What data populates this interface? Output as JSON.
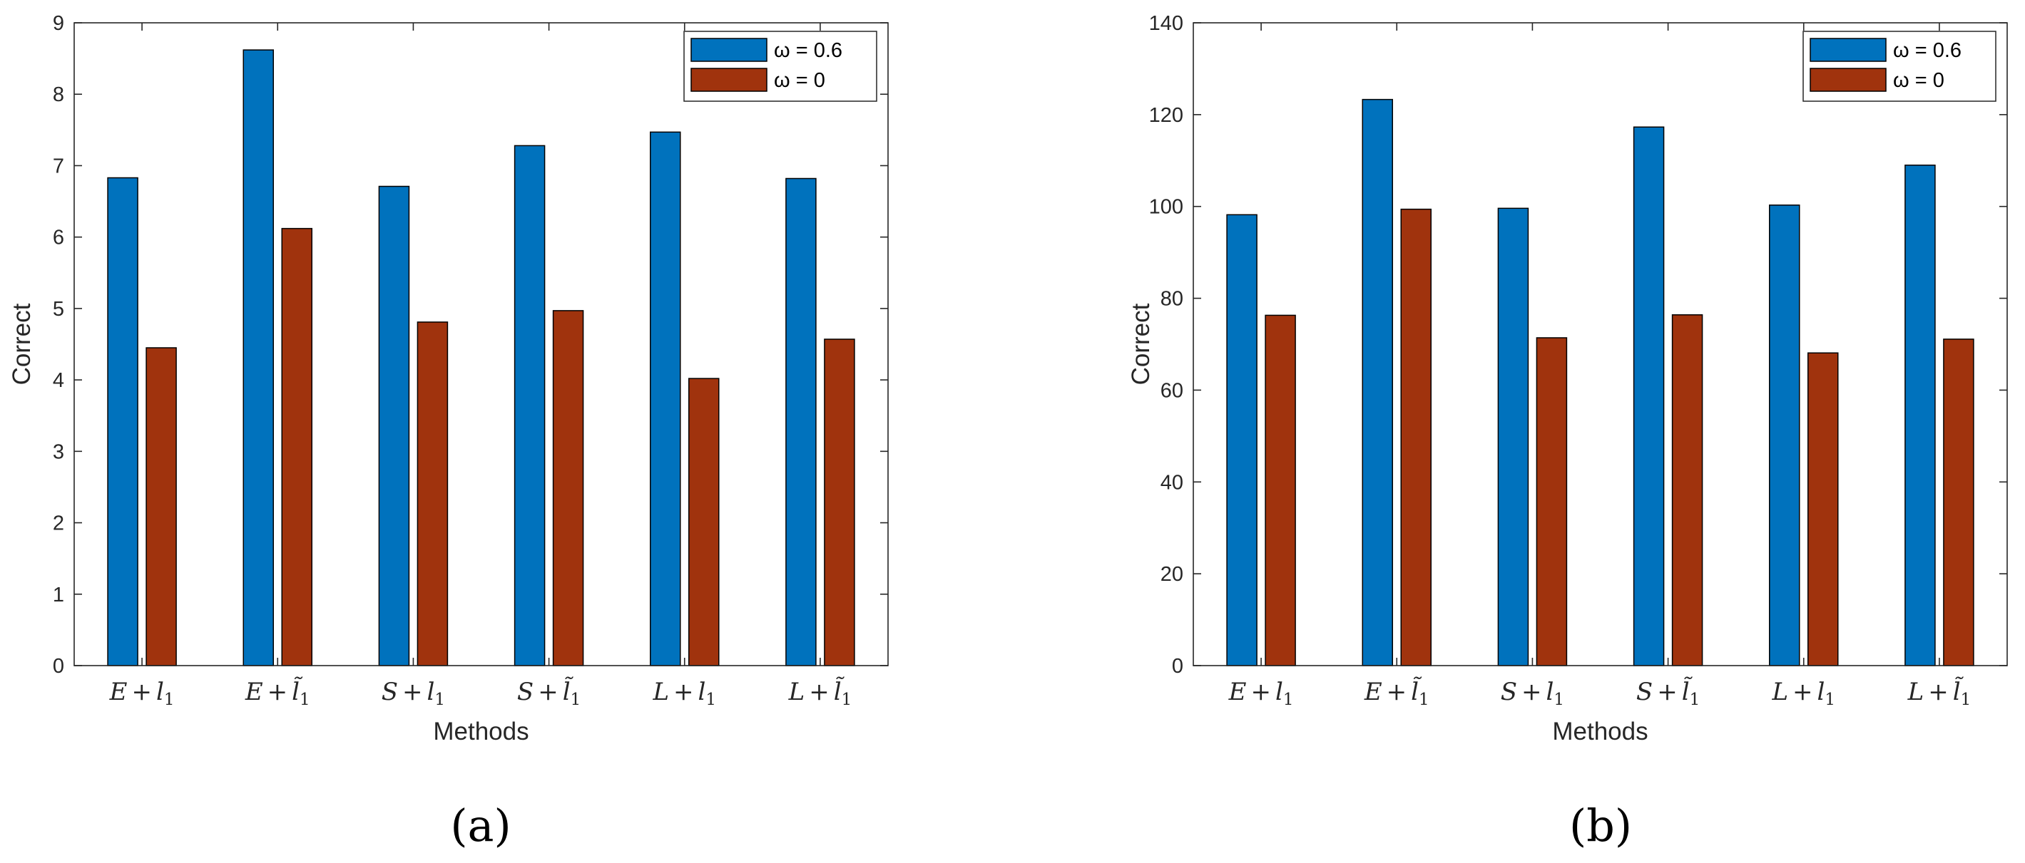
{
  "chart_data": [
    {
      "type": "bar",
      "panel_label": "(a)",
      "categories": [
        "E + l1",
        "E + l̃1",
        "S + l1",
        "S + l̃1",
        "L + l1",
        "L + l̃1"
      ],
      "category_tex": [
        {
          "base": "E",
          "sub": "1",
          "tilde": false
        },
        {
          "base": "E",
          "sub": "1",
          "tilde": true
        },
        {
          "base": "S",
          "sub": "1",
          "tilde": false
        },
        {
          "base": "S",
          "sub": "1",
          "tilde": true
        },
        {
          "base": "L",
          "sub": "1",
          "tilde": false
        },
        {
          "base": "L",
          "sub": "1",
          "tilde": true
        }
      ],
      "series": [
        {
          "name": "ω = 0.6",
          "color": "#0072bd",
          "values": [
            6.83,
            8.62,
            6.71,
            7.28,
            7.47,
            6.82
          ]
        },
        {
          "name": "ω = 0",
          "color": "#a0330d",
          "values": [
            4.45,
            6.12,
            4.81,
            4.97,
            4.02,
            4.57
          ]
        }
      ],
      "xlabel": "Methods",
      "ylabel": "Correct",
      "ylim": [
        0,
        9
      ],
      "yticks": [
        "0",
        "1",
        "2",
        "3",
        "4",
        "5",
        "6",
        "7",
        "8",
        "9"
      ],
      "legend_position": "top-right"
    },
    {
      "type": "bar",
      "panel_label": "(b)",
      "categories": [
        "E + l1",
        "E + l̃1",
        "S + l1",
        "S + l̃1",
        "L + l1",
        "L + l̃1"
      ],
      "category_tex": [
        {
          "base": "E",
          "sub": "1",
          "tilde": false
        },
        {
          "base": "E",
          "sub": "1",
          "tilde": true
        },
        {
          "base": "S",
          "sub": "1",
          "tilde": false
        },
        {
          "base": "S",
          "sub": "1",
          "tilde": true
        },
        {
          "base": "L",
          "sub": "1",
          "tilde": false
        },
        {
          "base": "L",
          "sub": "1",
          "tilde": true
        }
      ],
      "series": [
        {
          "name": "ω = 0.6",
          "color": "#0072bd",
          "values": [
            98.2,
            123.3,
            99.6,
            117.3,
            100.3,
            109.0
          ]
        },
        {
          "name": "ω = 0",
          "color": "#a0330d",
          "values": [
            76.3,
            99.4,
            71.4,
            76.4,
            68.1,
            71.1
          ]
        }
      ],
      "xlabel": "Methods",
      "ylabel": "Correct",
      "ylim": [
        0,
        140
      ],
      "yticks": [
        "0",
        "20",
        "40",
        "60",
        "80",
        "100",
        "120",
        "140"
      ],
      "legend_position": "top-right"
    }
  ]
}
